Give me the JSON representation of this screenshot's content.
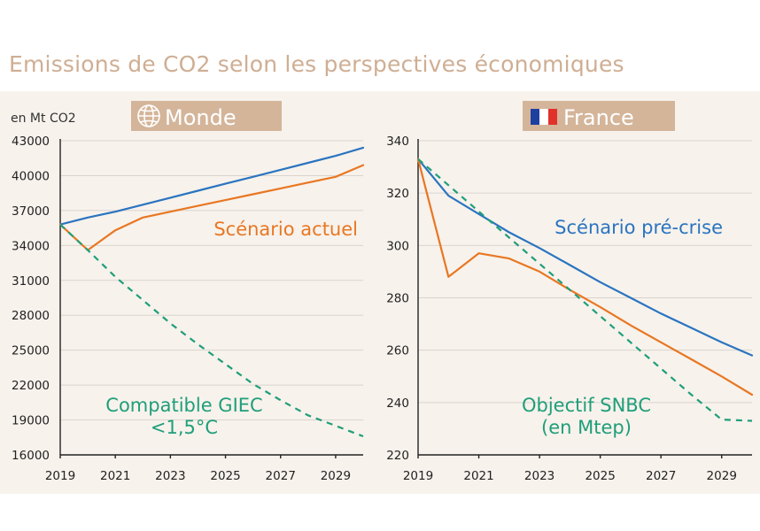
{
  "title": "Emissions de CO2 selon les perspectives économiques",
  "colors": {
    "blue": "#2a74c0",
    "orange": "#e87722",
    "green": "#1f9e7a",
    "title": "#cfae93",
    "badge": "#d4b59a"
  },
  "chart_data": [
    {
      "type": "line",
      "panel": "Monde",
      "badge_icon": "globe-icon",
      "unit_label": "en Mt CO2",
      "x": [
        2019,
        2020,
        2021,
        2022,
        2023,
        2024,
        2025,
        2026,
        2027,
        2028,
        2029,
        2030
      ],
      "xticks": [
        "2019",
        "2021",
        "2023",
        "2025",
        "2027",
        "2029"
      ],
      "yticks": [
        "43000",
        "40000",
        "37000",
        "34000",
        "31000",
        "28000",
        "25000",
        "22000",
        "19000",
        "16000"
      ],
      "ylim": [
        16000,
        43000
      ],
      "xlim": [
        2019,
        2030
      ],
      "series": [
        {
          "name": "Scénario pré-crise",
          "color": "#2a74c0",
          "style": "solid",
          "values": [
            35800,
            36400,
            36900,
            37500,
            38100,
            38700,
            39300,
            39900,
            40500,
            41100,
            41700,
            42400
          ]
        },
        {
          "name": "Scénario actuel",
          "color": "#e87722",
          "style": "solid",
          "values": [
            35800,
            33600,
            35300,
            36400,
            36900,
            37400,
            37900,
            38400,
            38900,
            39400,
            39900,
            40900
          ]
        },
        {
          "name": "Compatible GIEC <1,5°C",
          "color": "#1f9e7a",
          "style": "dashed",
          "values": [
            35800,
            33600,
            31300,
            29300,
            27300,
            25500,
            23800,
            22100,
            20700,
            19400,
            18500,
            17600
          ]
        }
      ],
      "annotations": [
        {
          "key": "actuel",
          "lines": [
            "Scénario actuel"
          ],
          "color": "#e87722"
        },
        {
          "key": "giec",
          "lines": [
            "Compatible GIEC",
            "<1,5°C"
          ],
          "color": "#1f9e7a"
        }
      ]
    },
    {
      "type": "line",
      "panel": "France",
      "badge_icon": "french-flag-icon",
      "x": [
        2019,
        2020,
        2021,
        2022,
        2023,
        2024,
        2025,
        2026,
        2027,
        2028,
        2029,
        2030
      ],
      "xticks": [
        "2019",
        "2021",
        "2023",
        "2025",
        "2027",
        "2029"
      ],
      "yticks": [
        "340",
        "320",
        "300",
        "280",
        "260",
        "240",
        "220"
      ],
      "ylim": [
        220,
        340
      ],
      "xlim": [
        2019,
        2030
      ],
      "series": [
        {
          "name": "Scénario pré-crise",
          "color": "#2a74c0",
          "style": "solid",
          "values": [
            333,
            319,
            312,
            305,
            299,
            292.5,
            286,
            280,
            274,
            268.5,
            263,
            258
          ]
        },
        {
          "name": "Scénario actuel",
          "color": "#e87722",
          "style": "solid",
          "values": [
            333,
            288,
            297,
            295,
            290,
            283,
            276.5,
            269.5,
            263,
            256.5,
            250,
            243
          ]
        },
        {
          "name": "Objectif SNBC (en Mtep)",
          "color": "#1f9e7a",
          "style": "dashed",
          "values": [
            333,
            323,
            313,
            303,
            293,
            283,
            273,
            263,
            253,
            243,
            233.5,
            233
          ]
        }
      ],
      "annotations": [
        {
          "key": "precrise",
          "lines": [
            "Scénario pré-crise"
          ],
          "color": "#2a74c0"
        },
        {
          "key": "snbc",
          "lines": [
            "Objectif SNBC",
            "(en Mtep)"
          ],
          "color": "#1f9e7a"
        }
      ]
    }
  ]
}
